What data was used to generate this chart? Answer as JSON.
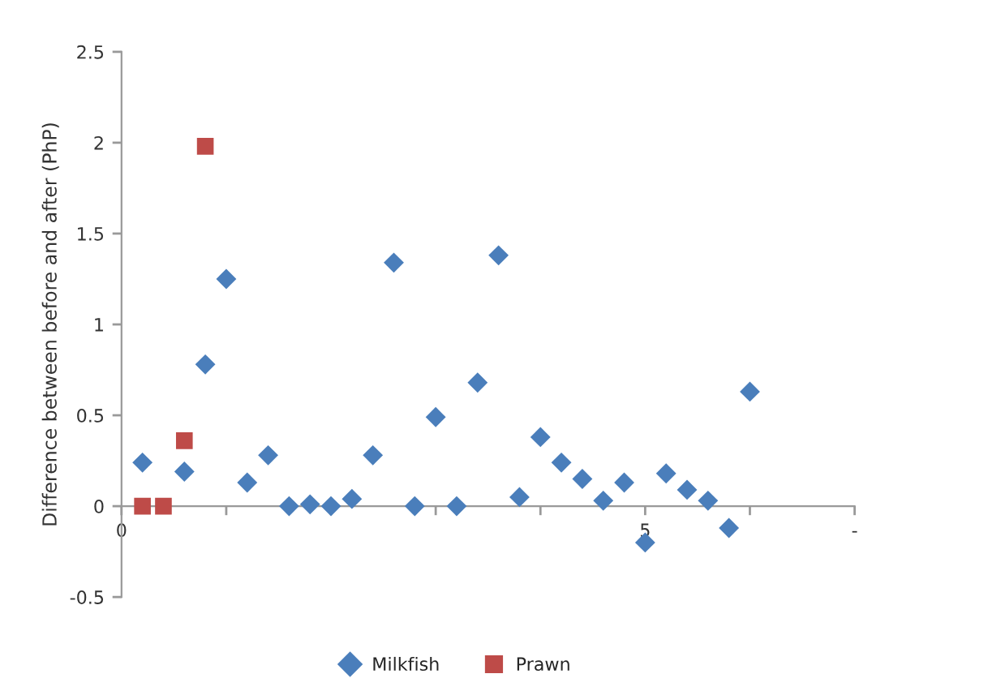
{
  "chart_data": {
    "type": "scatter",
    "ylabel": "Difference between before and after (PhP)",
    "xlim": [
      0,
      7
    ],
    "xticks": [
      0,
      {
        "value": 1,
        "label": null
      },
      {
        "value": 2,
        "label": null
      },
      {
        "value": 3,
        "label": null
      },
      {
        "value": 4,
        "label": null
      },
      5,
      {
        "value": 6,
        "label": null
      },
      {
        "value": 7,
        "label": "-"
      }
    ],
    "ylim": [
      -0.5,
      2.5
    ],
    "yticks": [
      -0.5,
      0,
      0.5,
      1,
      1.5,
      2,
      2.5
    ],
    "series": [
      {
        "name": "Milkfish",
        "color": "#4a7ebb",
        "marker": "diamond",
        "x": [
          0.2,
          0.6,
          0.8,
          1.0,
          1.2,
          1.4,
          1.6,
          1.8,
          2.0,
          2.2,
          2.4,
          2.6,
          2.8,
          3.0,
          3.2,
          3.4,
          3.6,
          3.8,
          4.0,
          4.2,
          4.4,
          4.6,
          4.8,
          5.0,
          5.2,
          5.4,
          5.6,
          5.8,
          6.0
        ],
        "values": [
          0.24,
          0.19,
          0.78,
          1.25,
          0.13,
          0.28,
          0.0,
          0.01,
          0.0,
          0.04,
          0.28,
          1.34,
          0.0,
          0.49,
          0.0,
          0.68,
          1.38,
          0.05,
          0.38,
          0.24,
          0.15,
          0.03,
          0.13,
          -0.2,
          0.18,
          0.09,
          0.03,
          -0.12,
          0.63
        ]
      },
      {
        "name": "Prawn",
        "color": "#be4b48",
        "marker": "square",
        "x": [
          0.2,
          0.4,
          0.6,
          0.8
        ],
        "values": [
          0.0,
          0.0,
          0.36,
          1.98
        ]
      }
    ],
    "grid": false,
    "legend": "bottom"
  }
}
